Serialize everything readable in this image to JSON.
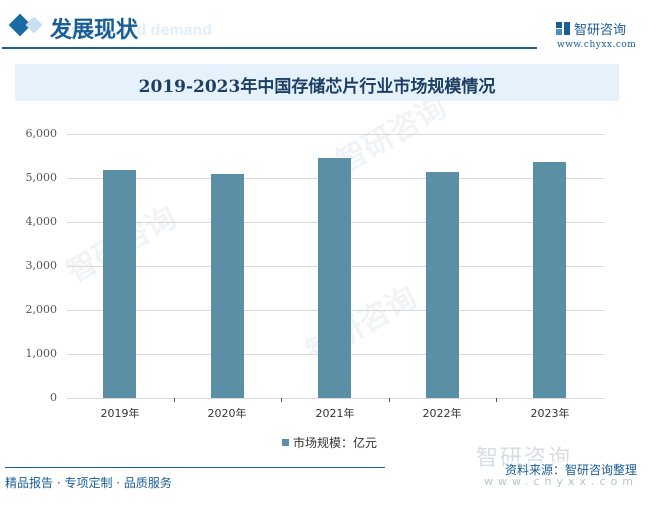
{
  "header": {
    "section_title": "发展现状",
    "ghost_text": "Supply and demand",
    "brand_name": "智研咨询",
    "brand_url": "www.chyxx.com"
  },
  "chart_title": "2019-2023年中国存储芯片行业市场规模情况",
  "chart_data": {
    "type": "bar",
    "title": "2019-2023年中国存储芯片行业市场规模情况",
    "categories": [
      "2019年",
      "2020年",
      "2021年",
      "2022年",
      "2023年"
    ],
    "series": [
      {
        "name": "市场规模：亿元",
        "values": [
          5180,
          5090,
          5450,
          5135,
          5365
        ],
        "color": "#5b8fa6"
      }
    ],
    "xlabel": "",
    "ylabel": "",
    "ylim": [
      0,
      6000
    ],
    "yticks": [
      "6,000",
      "5,000",
      "4,000",
      "3,000",
      "2,000",
      "1,000",
      "0"
    ],
    "grid": true,
    "legend_position": "bottom"
  },
  "legend": {
    "label": "市场规模：亿元"
  },
  "footer": {
    "tagline": "精品报告 · 专项定制 · 品质服务",
    "watermark_brand": "智研咨询",
    "watermark_url": "www.chyxx.com",
    "source": "资料来源：智研咨询整理"
  },
  "watermark": "智研咨询"
}
